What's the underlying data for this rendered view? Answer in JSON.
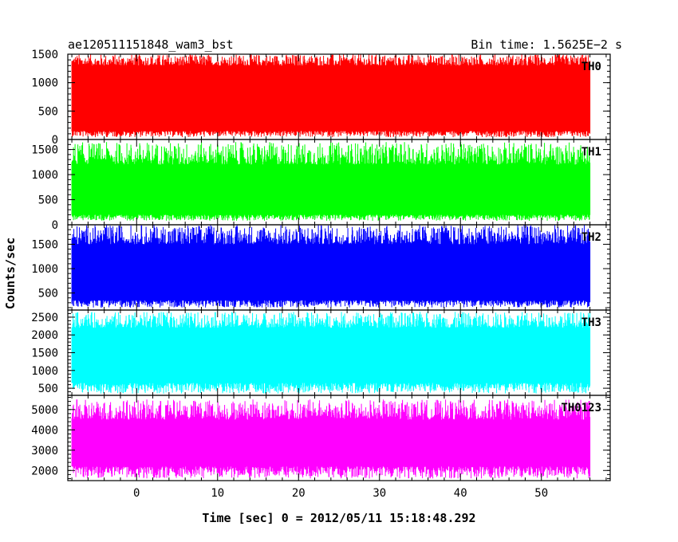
{
  "header": {
    "left": "ae120511151848_wam3_bst",
    "right": "Bin time: 1.5625E−2 s"
  },
  "chart_data": {
    "type": "line",
    "title": "ae120511151848_wam3_bst",
    "subtitle": "Bin time: 1.5625E−2 s",
    "xlabel": "Time [sec] 0 = 2012/05/11 15:18:48.292",
    "ylabel": "Counts/sec",
    "xlim": [
      -8.5,
      58.5
    ],
    "x_ticks": [
      0,
      10,
      20,
      30,
      40,
      50
    ],
    "x_tick_labels": [
      "0",
      "10",
      "20",
      "30",
      "40",
      "50"
    ],
    "data_x_range": [
      -8,
      56
    ],
    "bin_time": 0.015625,
    "grid": false,
    "panels": [
      {
        "name": "TH0",
        "color": "#ff0000",
        "ylim": [
          0,
          1500
        ],
        "y_ticks": [
          0,
          500,
          1000,
          1500
        ],
        "y_tick_labels": [
          "0",
          "500",
          "1000",
          "1500"
        ],
        "mean": 700,
        "band": [
          150,
          1300
        ],
        "spike_min": 40,
        "spike_max": 1500
      },
      {
        "name": "TH1",
        "color": "#00ff00",
        "ylim": [
          0,
          1700
        ],
        "y_ticks": [
          0,
          500,
          1000,
          1500
        ],
        "y_tick_labels": [
          "0",
          "500",
          "1000",
          "1500"
        ],
        "mean": 700,
        "band": [
          200,
          1200
        ],
        "spike_min": 80,
        "spike_max": 1650
      },
      {
        "name": "TH2",
        "color": "#0000ff",
        "ylim": [
          150,
          1900
        ],
        "y_ticks": [
          500,
          1000,
          1500
        ],
        "y_tick_labels": [
          "500",
          "1000",
          "1500"
        ],
        "mean": 950,
        "band": [
          350,
          1500
        ],
        "spike_min": 200,
        "spike_max": 1900
      },
      {
        "name": "TH3",
        "color": "#00ffff",
        "ylim": [
          300,
          2700
        ],
        "y_ticks": [
          500,
          1000,
          1500,
          2000,
          2500
        ],
        "y_tick_labels": [
          "500",
          "1000",
          "1500",
          "2000",
          "2500"
        ],
        "mean": 1450,
        "band": [
          650,
          2200
        ],
        "spike_min": 350,
        "spike_max": 2650
      },
      {
        "name": "TH0123",
        "color": "#ff00ff",
        "ylim": [
          1500,
          5700
        ],
        "y_ticks": [
          2000,
          3000,
          4000,
          5000
        ],
        "y_tick_labels": [
          "2000",
          "3000",
          "4000",
          "5000"
        ],
        "mean": 3400,
        "band": [
          2200,
          4500
        ],
        "spike_min": 1600,
        "spike_max": 5500
      }
    ]
  }
}
